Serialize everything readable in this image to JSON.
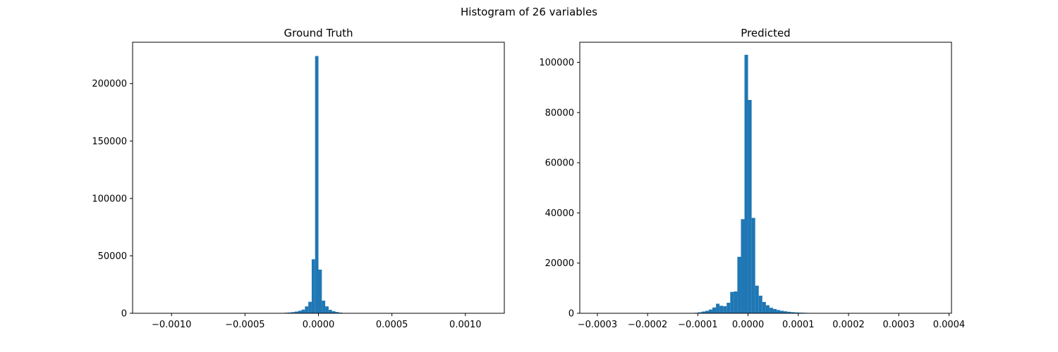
{
  "figure_title": "Histogram of 26 variables",
  "bar_color": "#1f77b4",
  "chart_data": [
    {
      "type": "bar",
      "title": "Ground Truth",
      "xlabel": "",
      "ylabel": "",
      "xlim": [
        -0.001265,
        0.001265
      ],
      "ylim": [
        0,
        236000
      ],
      "xticks": [
        -0.001,
        -0.0005,
        0.0,
        0.0005,
        0.001
      ],
      "xtick_labels": [
        "−0.0010",
        "−0.0005",
        "0.0000",
        "0.0005",
        "0.0010"
      ],
      "yticks": [
        0,
        50000,
        100000,
        150000,
        200000
      ],
      "ytick_labels": [
        "0",
        "50000",
        "100000",
        "150000",
        "200000"
      ],
      "bin_width": 2.3e-05,
      "bins": [
        [
          -0.000253,
          300
        ],
        [
          -0.00023,
          500
        ],
        [
          -0.000207,
          700
        ],
        [
          -0.000184,
          1000
        ],
        [
          -0.000161,
          1500
        ],
        [
          -0.000138,
          2200
        ],
        [
          -0.000115,
          3200
        ],
        [
          -9.2e-05,
          6000
        ],
        [
          -6.9e-05,
          10000
        ],
        [
          -4.6e-05,
          47000
        ],
        [
          -2.3e-05,
          224000
        ],
        [
          0.0,
          38000
        ],
        [
          2.3e-05,
          11000
        ],
        [
          4.6e-05,
          6000
        ],
        [
          6.9e-05,
          3000
        ],
        [
          9.2e-05,
          1800
        ],
        [
          0.000115,
          1100
        ],
        [
          0.000138,
          600
        ],
        [
          0.000161,
          300
        ]
      ]
    },
    {
      "type": "bar",
      "title": "Predicted",
      "xlabel": "",
      "ylabel": "",
      "xlim": [
        -0.000335,
        0.000405
      ],
      "ylim": [
        0,
        108000
      ],
      "xticks": [
        -0.0003,
        -0.0002,
        -0.0001,
        0.0,
        0.0001,
        0.0002,
        0.0003,
        0.0004
      ],
      "xtick_labels": [
        "−0.0003",
        "−0.0002",
        "−0.0001",
        "0.0000",
        "0.0001",
        "0.0002",
        "0.0003",
        "0.0004"
      ],
      "yticks": [
        0,
        20000,
        40000,
        60000,
        80000,
        100000
      ],
      "ytick_labels": [
        "0",
        "20000",
        "40000",
        "60000",
        "80000",
        "100000"
      ],
      "bin_width": 7.1e-06,
      "bins": [
        [
          -0.0001065,
          200
        ],
        [
          -9.94e-05,
          400
        ],
        [
          -9.23e-05,
          700
        ],
        [
          -8.52e-05,
          1000
        ],
        [
          -7.81e-05,
          1500
        ],
        [
          -7.1e-05,
          2300
        ],
        [
          -6.39e-05,
          3800
        ],
        [
          -5.68e-05,
          3000
        ],
        [
          -4.97e-05,
          2800
        ],
        [
          -4.26e-05,
          4200
        ],
        [
          -3.55e-05,
          8500
        ],
        [
          -2.84e-05,
          8700
        ],
        [
          -2.13e-05,
          22500
        ],
        [
          -1.42e-05,
          37500
        ],
        [
          -7.1e-06,
          103000
        ],
        [
          0.0,
          85000
        ],
        [
          7.1e-06,
          38000
        ],
        [
          1.42e-05,
          11000
        ],
        [
          2.13e-05,
          7000
        ],
        [
          2.84e-05,
          4500
        ],
        [
          3.55e-05,
          3200
        ],
        [
          4.26e-05,
          2200
        ],
        [
          4.97e-05,
          1700
        ],
        [
          5.68e-05,
          1300
        ],
        [
          6.39e-05,
          1000
        ],
        [
          7.1e-05,
          800
        ],
        [
          7.81e-05,
          600
        ],
        [
          8.52e-05,
          450
        ],
        [
          9.23e-05,
          350
        ],
        [
          9.94e-05,
          280
        ],
        [
          0.0001065,
          220
        ],
        [
          0.0001136,
          170
        ],
        [
          0.0001207,
          130
        ],
        [
          0.0001278,
          100
        ],
        [
          0.0001349,
          80
        ],
        [
          0.000142,
          60
        ],
        [
          0.0001491,
          45
        ],
        [
          0.0001562,
          30
        ]
      ]
    }
  ]
}
